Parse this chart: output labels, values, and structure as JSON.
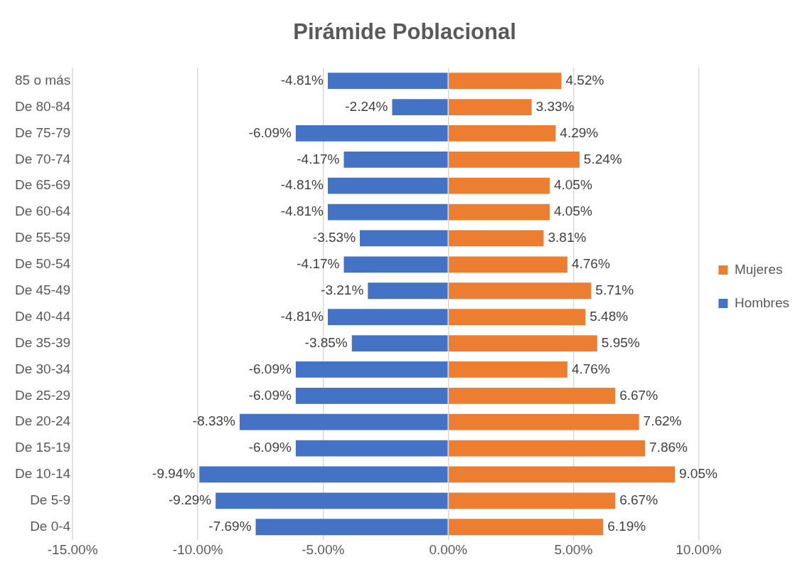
{
  "chart_data": {
    "type": "bar",
    "orientation": "horizontal",
    "stacked": true,
    "title": "Pirámide Poblacional",
    "categories": [
      "85 o más",
      "De 80-84",
      "De 75-79",
      "De 70-74",
      "De 65-69",
      "De 60-64",
      "De 55-59",
      "De 50-54",
      "De 45-49",
      "De 40-44",
      "De 35-39",
      "De 30-34",
      "De 25-29",
      "De 20-24",
      "De 15-19",
      "De 10-14",
      "De 5-9",
      "De 0-4"
    ],
    "series": [
      {
        "name": "Mujeres",
        "color": "#ed7d31",
        "values": [
          4.52,
          3.33,
          4.29,
          5.24,
          4.05,
          4.05,
          3.81,
          4.76,
          5.71,
          5.48,
          5.95,
          4.76,
          6.67,
          7.62,
          7.86,
          9.05,
          6.67,
          6.19
        ],
        "value_labels": [
          "4.52%",
          "3.33%",
          "4.29%",
          "5.24%",
          "4.05%",
          "4.05%",
          "3.81%",
          "4.76%",
          "5.71%",
          "5.48%",
          "5.95%",
          "4.76%",
          "6.67%",
          "7.62%",
          "7.86%",
          "9.05%",
          "6.67%",
          "6.19%"
        ]
      },
      {
        "name": "Hombres",
        "color": "#4472c4",
        "values": [
          -4.81,
          -2.24,
          -6.09,
          -4.17,
          -4.81,
          -4.81,
          -3.53,
          -4.17,
          -3.21,
          -4.81,
          -3.85,
          -6.09,
          -6.09,
          -8.33,
          -6.09,
          -9.94,
          -9.29,
          -7.69
        ],
        "value_labels": [
          "-4.81%",
          "-2.24%",
          "-6.09%",
          "-4.17%",
          "-4.81%",
          "-4.81%",
          "-3.53%",
          "-4.17%",
          "-3.21%",
          "-4.81%",
          "-3.85%",
          "-6.09%",
          "-6.09%",
          "-8.33%",
          "-6.09%",
          "-9.94%",
          "-9.29%",
          "-7.69%"
        ]
      }
    ],
    "xlim": [
      -15,
      10
    ],
    "xticks": [
      {
        "value": -15,
        "label": "-15.00%"
      },
      {
        "value": -10,
        "label": "-10.00%"
      },
      {
        "value": -5,
        "label": "-5.00%"
      },
      {
        "value": 0,
        "label": "0.00%"
      },
      {
        "value": 5,
        "label": "5.00%"
      },
      {
        "value": 10,
        "label": "10.00%"
      }
    ],
    "grid": "x",
    "legend": "right"
  }
}
